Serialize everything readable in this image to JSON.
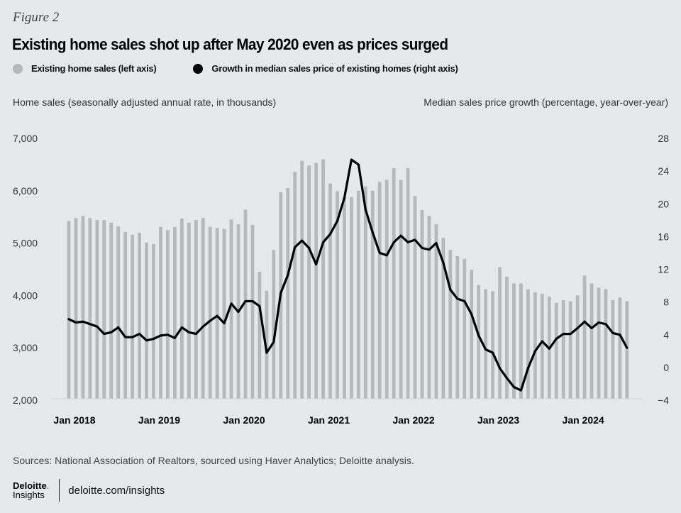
{
  "figure_label": "Figure 2",
  "colors": {
    "bar": "#b7b8b9",
    "line": "#000000",
    "background": "#e7e8ea",
    "brand_green": "#86bc25"
  },
  "chart_data": {
    "type": "bar+line",
    "title": "Existing home sales shot up after May 2020 even as prices surged",
    "legend": [
      {
        "name": "Existing home sales (left axis)",
        "marker": "gray-dot",
        "color": "#b7b8b9"
      },
      {
        "name": "Growth in median sales price of existing homes (right axis)",
        "marker": "black-dot",
        "color": "#000000"
      }
    ],
    "legend_position": "top-left",
    "ylabel_left": "Home sales (seasonally adjusted annual rate, in thousands)",
    "ylabel_right": "Median sales price growth (percentage, year-over-year)",
    "ylim_left": [
      2000,
      7000
    ],
    "yticks_left": [
      "7,000",
      "6,000",
      "5,000",
      "4,000",
      "3,000",
      "2,000"
    ],
    "ylim_right": [
      -4,
      28
    ],
    "yticks_right": [
      "28",
      "24",
      "20",
      "16",
      "12",
      "8",
      "4",
      "0",
      "−4"
    ],
    "x_tick_labels": [
      "Jan 2018",
      "Jan 2019",
      "Jan 2020",
      "Jan 2021",
      "Jan 2022",
      "Jan 2023",
      "Jan 2024"
    ],
    "x_start": "Jan 2018",
    "x_end": "Aug 2024",
    "grid": false,
    "series": [
      {
        "name": "Existing home sales",
        "axis": "left",
        "type": "bar",
        "values": [
          5420,
          5480,
          5520,
          5480,
          5440,
          5440,
          5390,
          5320,
          5210,
          5160,
          5200,
          5010,
          4980,
          5310,
          5250,
          5310,
          5470,
          5390,
          5440,
          5480,
          5310,
          5290,
          5270,
          5450,
          5360,
          5640,
          5350,
          4450,
          4090,
          4870,
          5970,
          6050,
          6360,
          6570,
          6480,
          6530,
          6600,
          6140,
          5990,
          5870,
          5880,
          6000,
          6080,
          6000,
          6170,
          6210,
          6430,
          6210,
          6430,
          5900,
          5630,
          5520,
          5360,
          5100,
          4870,
          4750,
          4700,
          4490,
          4200,
          4120,
          4080,
          4540,
          4360,
          4230,
          4230,
          4120,
          4060,
          4030,
          3980,
          3860,
          3910,
          3890,
          4000,
          4380,
          4230,
          4150,
          4120,
          3910,
          3960,
          3890
        ]
      },
      {
        "name": "Growth in median sales price of existing homes",
        "axis": "right",
        "type": "line",
        "values": [
          5.9,
          5.5,
          5.6,
          5.3,
          5.0,
          4.1,
          4.3,
          4.9,
          3.7,
          3.7,
          4.1,
          3.3,
          3.5,
          3.9,
          4.0,
          3.6,
          4.9,
          4.3,
          4.1,
          5.0,
          5.7,
          6.3,
          5.4,
          7.8,
          6.8,
          8.1,
          8.1,
          7.5,
          1.8,
          3.1,
          9.1,
          11.3,
          14.7,
          15.5,
          14.6,
          12.6,
          15.3,
          16.3,
          17.9,
          20.7,
          25.4,
          24.8,
          19.3,
          16.5,
          14.0,
          13.7,
          15.3,
          16.1,
          15.3,
          15.6,
          14.6,
          14.4,
          15.2,
          12.8,
          9.5,
          8.4,
          8.1,
          6.5,
          3.9,
          2.2,
          1.8,
          -0.1,
          -1.3,
          -2.4,
          -2.8,
          -0.1,
          2.0,
          3.2,
          2.3,
          3.5,
          4.1,
          4.1,
          4.8,
          5.6,
          4.8,
          5.5,
          5.3,
          4.2,
          4.0,
          2.4
        ]
      }
    ]
  },
  "footer": {
    "sources": "Sources: National Association of Realtors, sourced using Haver Analytics; Deloitte analysis.",
    "brand_name": "Deloitte",
    "brand_dot": ".",
    "brand_sub": "Insights",
    "url": "deloitte.com/insights"
  }
}
